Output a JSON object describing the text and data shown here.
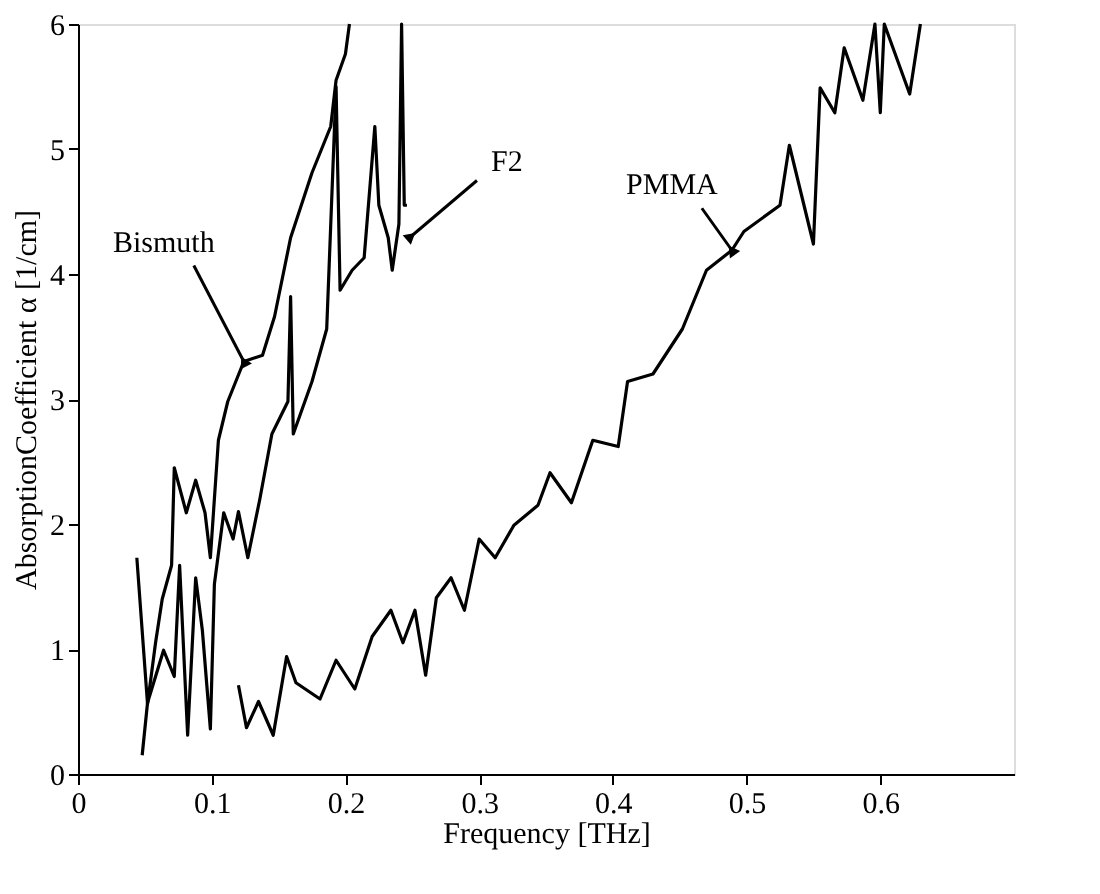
{
  "chart_data": {
    "type": "line",
    "xlabel": "Frequency [THz]",
    "ylabel": "AbsorptionCoefficient α  [1/cm]",
    "xlim": [
      0,
      0.7
    ],
    "ylim": [
      0,
      6
    ],
    "xticks": [
      0,
      0.1,
      0.2,
      0.3,
      0.4,
      0.5,
      0.6
    ],
    "yticks": [
      0,
      1,
      2,
      3,
      4,
      5,
      6
    ],
    "grid": false,
    "line_style": "solid",
    "marker": "none",
    "series": [
      {
        "color": "#000000",
        "x": [
          0.044,
          0.052,
          0.058,
          0.063,
          0.07,
          0.072,
          0.081,
          0.088,
          0.095,
          0.099,
          0.105,
          0.112,
          0.124,
          0.138,
          0.147,
          0.159,
          0.175,
          0.189,
          0.193,
          0.2,
          0.203
        ],
        "values": [
          1.73,
          0.56,
          1.05,
          1.4,
          1.67,
          2.45,
          2.09,
          2.35,
          2.09,
          1.73,
          2.67,
          2.98,
          3.3,
          3.35,
          3.66,
          4.29,
          4.81,
          5.18,
          5.55,
          5.76,
          6.0
        ]
      },
      {
        "color": "#000000",
        "x": [
          0.048,
          0.052,
          0.058,
          0.064,
          0.072,
          0.076,
          0.082,
          0.088,
          0.093,
          0.099,
          0.102,
          0.109,
          0.116,
          0.12,
          0.127,
          0.136,
          0.145,
          0.157,
          0.159,
          0.161,
          0.175,
          0.186,
          0.193,
          0.196,
          0.205,
          0.214,
          0.222,
          0.225,
          0.232,
          0.235,
          0.24,
          0.242,
          0.244,
          0.246
        ],
        "values": [
          0.15,
          0.57,
          0.78,
          0.99,
          0.78,
          1.67,
          0.31,
          1.57,
          1.15,
          0.36,
          1.52,
          2.09,
          1.88,
          2.1,
          1.73,
          2.2,
          2.72,
          2.98,
          3.82,
          2.72,
          3.14,
          3.56,
          5.5,
          3.87,
          4.03,
          4.13,
          5.18,
          4.55,
          4.29,
          4.03,
          4.4,
          6.0,
          4.55,
          4.55
        ]
      },
      {
        "color": "#000000",
        "x": [
          0.12,
          0.126,
          0.135,
          0.146,
          0.156,
          0.163,
          0.181,
          0.193,
          0.207,
          0.22,
          0.234,
          0.243,
          0.252,
          0.26,
          0.268,
          0.279,
          0.289,
          0.3,
          0.312,
          0.326,
          0.344,
          0.353,
          0.369,
          0.385,
          0.404,
          0.411,
          0.43,
          0.452,
          0.47,
          0.489,
          0.498,
          0.525,
          0.532,
          0.55,
          0.555,
          0.566,
          0.573,
          0.587,
          0.596,
          0.6,
          0.603,
          0.622,
          0.63
        ],
        "values": [
          0.71,
          0.37,
          0.58,
          0.31,
          0.94,
          0.73,
          0.6,
          0.91,
          0.68,
          1.1,
          1.31,
          1.05,
          1.31,
          0.79,
          1.41,
          1.57,
          1.31,
          1.88,
          1.73,
          1.99,
          2.15,
          2.41,
          2.17,
          2.67,
          2.62,
          3.14,
          3.2,
          3.56,
          4.03,
          4.19,
          4.34,
          4.55,
          5.03,
          4.24,
          5.49,
          5.29,
          5.81,
          5.39,
          6.0,
          5.29,
          6.0,
          5.44,
          6.0
        ]
      }
    ],
    "annotations": [
      {
        "text": "Bismuth",
        "x": 0.124,
        "y": 3.3
      },
      {
        "text": "F2",
        "x": 0.249,
        "y": 4.3
      },
      {
        "text": "PMMA",
        "x": 0.489,
        "y": 4.19
      }
    ]
  }
}
